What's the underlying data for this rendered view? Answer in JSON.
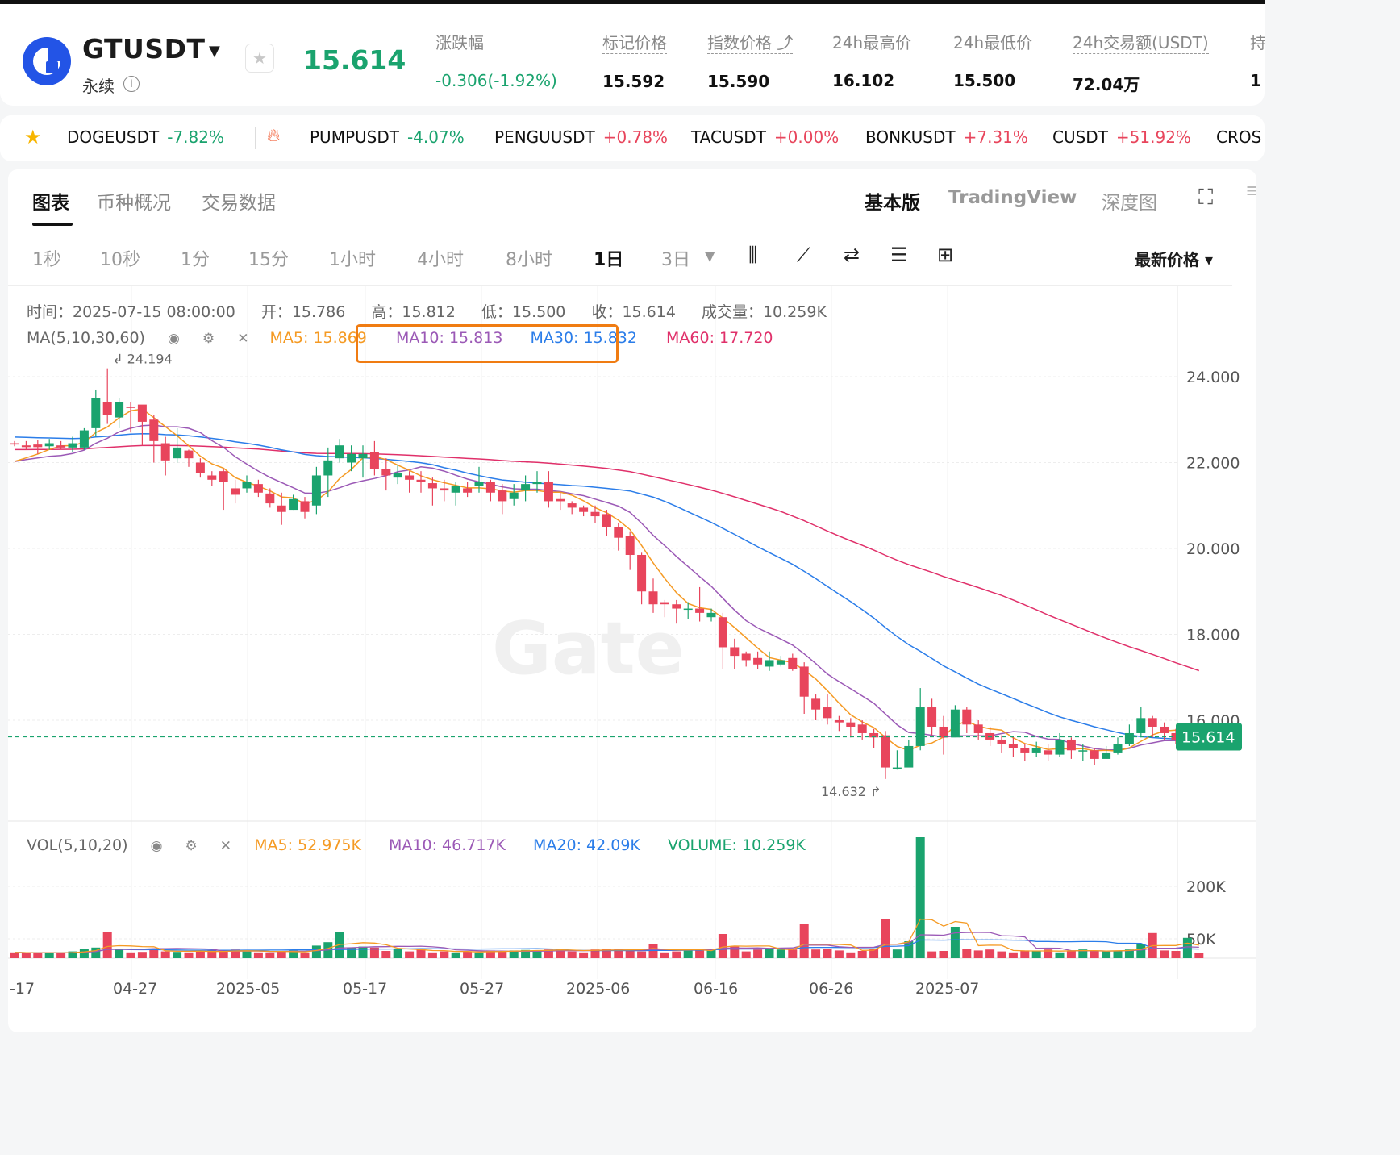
{
  "header": {
    "symbol": "GTUSDT",
    "contract_type": "永续",
    "last_price": "15.614",
    "stats": [
      {
        "label": "涨跌幅",
        "value": "-0.306(-1.92%)",
        "dashed": false,
        "green": true
      },
      {
        "label": "标记价格",
        "value": "15.592",
        "dashed": true
      },
      {
        "label": "指数价格 ⤴",
        "value": "15.590",
        "dashed": true
      },
      {
        "label": "24h最高价",
        "value": "16.102",
        "dashed": false
      },
      {
        "label": "24h最低价",
        "value": "15.500",
        "dashed": false
      },
      {
        "label": "24h交易额(USDT)",
        "value": "72.04万",
        "dashed": true
      },
      {
        "label": "持",
        "value": "1",
        "dashed": false
      }
    ]
  },
  "ticker": [
    {
      "name": "DOGEUSDT",
      "change": "-7.82%",
      "dir": "neg"
    },
    {
      "name": "PUMPUSDT",
      "change": "-4.07%",
      "dir": "neg"
    },
    {
      "name": "PENGUUSDT",
      "change": "+0.78%",
      "dir": "pos"
    },
    {
      "name": "TACUSDT",
      "change": "+0.00%",
      "dir": "pos"
    },
    {
      "name": "BONKUSDT",
      "change": "+7.31%",
      "dir": "pos"
    },
    {
      "name": "CUSDT",
      "change": "+51.92%",
      "dir": "pos"
    },
    {
      "name": "CROS",
      "change": "",
      "dir": "pos"
    }
  ],
  "tabs": [
    "图表",
    "币种概况",
    "交易数据"
  ],
  "view_modes": [
    "基本版",
    "TradingView",
    "深度图"
  ],
  "intervals": [
    "1秒",
    "10秒",
    "1分",
    "15分",
    "1小时",
    "4小时",
    "8小时",
    "1日",
    "3日"
  ],
  "active_interval": "1日",
  "price_type": "最新价格",
  "ohlc": {
    "time": "时间：2025-07-15 08:00:00",
    "open": "开：15.786",
    "high": "高：15.812",
    "low": "低：15.500",
    "close": "收：15.614",
    "volume": "成交量：10.259K"
  },
  "ma_indicator": {
    "label": "MA(5,10,30,60)",
    "ma5": "MA5: 15.869",
    "ma10": "MA10: 15.813",
    "ma30": "MA30: 15.832",
    "ma60": "MA60: 17.720"
  },
  "vol_indicator": {
    "label": "VOL(5,10,20)",
    "ma5": "MA5: 52.975K",
    "ma10": "MA10: 46.717K",
    "ma20": "MA20: 42.09K",
    "volume": "VOLUME: 10.259K"
  },
  "colors": {
    "up": "#1aa36e",
    "down": "#e8455c",
    "ma5": "#f59a23",
    "ma10": "#9b59b6",
    "ma30": "#2b7de9",
    "ma60": "#e0306a",
    "highlight": "#f07c12"
  },
  "chart_data": {
    "type": "candlestick",
    "price_axis_ticks": [
      "24.000",
      "22.000",
      "20.000",
      "18.000",
      "16.000"
    ],
    "price_range": [
      14.0,
      25.5
    ],
    "volume_axis_ticks": [
      "200K",
      "50K"
    ],
    "date_ticks": [
      "-17",
      "04-27",
      "2025-05",
      "05-17",
      "05-27",
      "2025-06",
      "06-16",
      "06-26",
      "2025-07"
    ],
    "current_price_label": "15.614",
    "max_marker": "24.194",
    "min_marker": "14.632",
    "candles": [
      [
        22.45,
        22.42,
        22.5,
        22.38,
        12
      ],
      [
        22.4,
        22.36,
        22.5,
        22.3,
        11
      ],
      [
        22.42,
        22.36,
        22.52,
        22.2,
        10
      ],
      [
        22.38,
        22.45,
        22.55,
        22.3,
        12
      ],
      [
        22.4,
        22.35,
        22.5,
        22.3,
        10
      ],
      [
        22.35,
        22.45,
        22.6,
        22.25,
        14
      ],
      [
        22.35,
        22.75,
        22.8,
        22.3,
        20
      ],
      [
        22.8,
        23.5,
        23.7,
        22.6,
        22
      ],
      [
        23.4,
        23.1,
        24.194,
        22.9,
        55
      ],
      [
        23.05,
        23.4,
        23.5,
        22.8,
        18
      ],
      [
        23.3,
        23.28,
        23.4,
        22.7,
        12
      ],
      [
        23.35,
        22.95,
        23.3,
        22.4,
        13
      ],
      [
        23.0,
        22.5,
        23.1,
        22.0,
        20
      ],
      [
        22.45,
        22.05,
        22.6,
        21.7,
        14
      ],
      [
        22.1,
        22.35,
        22.8,
        22.0,
        13
      ],
      [
        22.28,
        22.1,
        22.3,
        21.9,
        12
      ],
      [
        22.0,
        21.75,
        22.1,
        21.65,
        14
      ],
      [
        21.7,
        21.6,
        21.8,
        21.45,
        16
      ],
      [
        21.8,
        21.55,
        21.85,
        20.9,
        15
      ],
      [
        21.4,
        21.25,
        21.6,
        21.05,
        18
      ],
      [
        21.4,
        21.55,
        21.7,
        21.3,
        14
      ],
      [
        21.5,
        21.3,
        21.6,
        21.2,
        12
      ],
      [
        21.28,
        21.05,
        21.4,
        20.95,
        12
      ],
      [
        21.0,
        20.85,
        21.3,
        20.55,
        14
      ],
      [
        20.9,
        21.15,
        21.25,
        20.9,
        16
      ],
      [
        21.1,
        20.85,
        21.2,
        20.7,
        12
      ],
      [
        21.0,
        21.7,
        21.9,
        20.8,
        26
      ],
      [
        21.7,
        22.05,
        22.35,
        21.2,
        33
      ],
      [
        22.1,
        22.4,
        22.55,
        22.0,
        55
      ],
      [
        22.0,
        22.2,
        22.4,
        21.8,
        22
      ],
      [
        22.1,
        22.2,
        22.4,
        21.65,
        24
      ],
      [
        22.25,
        21.85,
        22.5,
        21.7,
        22
      ],
      [
        21.85,
        21.7,
        22.1,
        21.35,
        15
      ],
      [
        21.65,
        21.75,
        21.95,
        21.5,
        20
      ],
      [
        21.7,
        21.6,
        21.8,
        21.3,
        14
      ],
      [
        21.6,
        21.55,
        21.8,
        21.3,
        18
      ],
      [
        21.52,
        21.4,
        21.65,
        21.0,
        12
      ],
      [
        21.4,
        21.35,
        21.6,
        21.1,
        14
      ],
      [
        21.3,
        21.45,
        21.55,
        21.0,
        12
      ],
      [
        21.4,
        21.3,
        21.55,
        21.2,
        14
      ],
      [
        21.45,
        21.55,
        21.9,
        21.3,
        12
      ],
      [
        21.55,
        21.3,
        21.6,
        21.1,
        16
      ],
      [
        21.35,
        21.1,
        21.5,
        20.8,
        15
      ],
      [
        21.15,
        21.3,
        21.5,
        21.0,
        16
      ],
      [
        21.35,
        21.5,
        21.7,
        21.1,
        17
      ],
      [
        21.5,
        21.55,
        21.8,
        21.3,
        15
      ],
      [
        21.55,
        21.1,
        21.8,
        20.95,
        18
      ],
      [
        21.15,
        21.1,
        21.3,
        20.9,
        20
      ],
      [
        21.05,
        20.95,
        21.1,
        20.8,
        14
      ],
      [
        20.95,
        20.85,
        21.0,
        20.75,
        12
      ],
      [
        20.85,
        20.75,
        21.0,
        20.6,
        18
      ],
      [
        20.8,
        20.5,
        20.9,
        20.3,
        20
      ],
      [
        20.5,
        20.25,
        20.6,
        19.95,
        20
      ],
      [
        20.3,
        19.85,
        20.4,
        19.5,
        16
      ],
      [
        19.85,
        19.0,
        19.9,
        18.7,
        14
      ],
      [
        19.0,
        18.7,
        19.3,
        18.5,
        30
      ],
      [
        18.75,
        18.7,
        18.8,
        18.4,
        12
      ],
      [
        18.7,
        18.6,
        18.8,
        18.25,
        14
      ],
      [
        18.6,
        18.6,
        18.75,
        18.35,
        16
      ],
      [
        18.6,
        18.5,
        19.1,
        18.3,
        16
      ],
      [
        18.4,
        18.5,
        18.6,
        18.3,
        20
      ],
      [
        18.4,
        17.7,
        18.5,
        17.2,
        50
      ],
      [
        17.7,
        17.5,
        17.9,
        17.2,
        24
      ],
      [
        17.55,
        17.4,
        17.6,
        17.25,
        14
      ],
      [
        17.45,
        17.3,
        17.6,
        17.2,
        18
      ],
      [
        17.25,
        17.4,
        17.6,
        17.15,
        20
      ],
      [
        17.3,
        17.4,
        17.5,
        17.25,
        18
      ],
      [
        17.45,
        17.2,
        17.55,
        17.15,
        18
      ],
      [
        17.25,
        16.55,
        17.35,
        16.15,
        70
      ],
      [
        16.5,
        16.25,
        16.6,
        16.0,
        18
      ],
      [
        16.3,
        16.05,
        16.6,
        15.9,
        20
      ],
      [
        16.0,
        15.95,
        16.1,
        15.75,
        16
      ],
      [
        15.95,
        15.85,
        16.05,
        15.6,
        12
      ],
      [
        15.9,
        15.7,
        16.0,
        15.55,
        15
      ],
      [
        15.7,
        15.6,
        15.8,
        15.35,
        20
      ],
      [
        15.65,
        14.9,
        15.75,
        14.632,
        80
      ],
      [
        14.9,
        14.9,
        15.3,
        14.85,
        18
      ],
      [
        14.9,
        15.4,
        15.55,
        14.95,
        35
      ],
      [
        15.4,
        16.3,
        16.75,
        15.3,
        250
      ],
      [
        16.3,
        15.85,
        16.5,
        15.65,
        14
      ],
      [
        15.85,
        15.6,
        16.1,
        15.2,
        15
      ],
      [
        15.6,
        16.25,
        16.35,
        15.7,
        65
      ],
      [
        16.25,
        15.9,
        16.3,
        15.7,
        20
      ],
      [
        15.9,
        15.7,
        16.0,
        15.55,
        16
      ],
      [
        15.7,
        15.55,
        15.85,
        15.4,
        18
      ],
      [
        15.55,
        15.45,
        15.65,
        15.25,
        14
      ],
      [
        15.45,
        15.35,
        15.6,
        15.15,
        12
      ],
      [
        15.35,
        15.25,
        15.45,
        15.05,
        16
      ],
      [
        15.25,
        15.35,
        15.5,
        15.15,
        15
      ],
      [
        15.3,
        15.2,
        15.45,
        15.05,
        18
      ],
      [
        15.2,
        15.55,
        15.7,
        15.15,
        12
      ],
      [
        15.55,
        15.3,
        15.6,
        15.1,
        15
      ],
      [
        15.3,
        15.3,
        15.45,
        15.05,
        18
      ],
      [
        15.3,
        15.1,
        15.35,
        14.95,
        15
      ],
      [
        15.1,
        15.25,
        15.4,
        15.1,
        14
      ],
      [
        15.25,
        15.45,
        15.6,
        15.2,
        15
      ],
      [
        15.45,
        15.7,
        15.9,
        15.4,
        18
      ],
      [
        15.7,
        16.05,
        16.3,
        15.6,
        30
      ],
      [
        16.05,
        15.85,
        16.1,
        15.6,
        52
      ],
      [
        15.85,
        15.7,
        15.95,
        15.55,
        16
      ],
      [
        15.7,
        15.55,
        15.8,
        15.45,
        15
      ],
      [
        15.55,
        15.786,
        15.85,
        15.5,
        42
      ],
      [
        15.786,
        15.614,
        15.812,
        15.5,
        10
      ]
    ]
  }
}
